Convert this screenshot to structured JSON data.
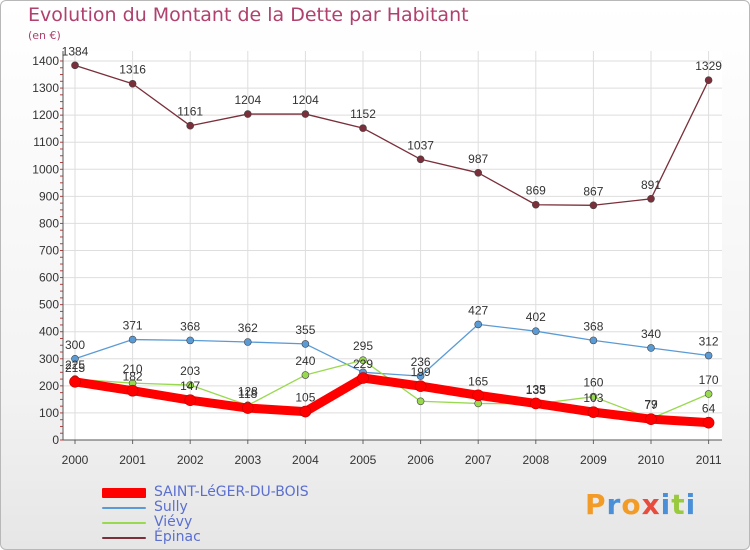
{
  "chart_data": {
    "type": "line",
    "title": "Evolution du Montant de la Dette par Habitant",
    "ylabel": "(en €)",
    "x": [
      "2000",
      "2001",
      "2002",
      "2003",
      "2004",
      "2005",
      "2006",
      "2007",
      "2008",
      "2009",
      "2010",
      "2011"
    ],
    "ylim": [
      0,
      1400
    ],
    "yticks": [
      0,
      100,
      200,
      300,
      400,
      500,
      600,
      700,
      800,
      900,
      1000,
      1100,
      1200,
      1300,
      1400
    ],
    "grid": true,
    "legend_position": "bottom-left",
    "series": [
      {
        "name": "SAINT-LéGER-DU-BOIS",
        "color": "#ff0000",
        "values": [
          215,
          182,
          147,
          118,
          105,
          229,
          199,
          165,
          135,
          103,
          77,
          64
        ]
      },
      {
        "name": "Sully",
        "color": "#5b9bd5",
        "values": [
          300,
          371,
          368,
          362,
          355,
          250,
          236,
          427,
          402,
          368,
          340,
          312
        ]
      },
      {
        "name": "Viévy",
        "color": "#99d94f",
        "values": [
          225,
          210,
          203,
          128,
          240,
          295,
          143,
          135,
          133,
          160,
          79,
          170
        ]
      },
      {
        "name": "Épinac",
        "color": "#7a2f3a",
        "values": [
          1384,
          1316,
          1161,
          1204,
          1204,
          1152,
          1037,
          987,
          869,
          867,
          891,
          1329
        ]
      }
    ],
    "data_labels": [
      {
        "series": "Épinac",
        "labels": [
          "1384",
          "1316",
          "1161",
          "1204",
          "1204",
          "1152",
          "1037",
          "987",
          "869",
          "867",
          "891",
          "1329"
        ]
      },
      {
        "series": "Sully",
        "labels": [
          "300",
          "371",
          "368",
          "362",
          "355",
          "",
          "236",
          "427",
          "402",
          "368",
          "340",
          "312"
        ]
      },
      {
        "series": "Viévy",
        "labels": [
          "225",
          "210",
          "203",
          "128",
          "240",
          "295",
          "",
          "",
          "133",
          "160",
          "79",
          "170"
        ]
      },
      {
        "series": "SAINT-LéGER-DU-BOIS",
        "labels": [
          "215",
          "182",
          "147",
          "118",
          "105",
          "229",
          "199",
          "165",
          "135",
          "103",
          "77",
          "64"
        ]
      }
    ]
  },
  "logo": {
    "text": "Proxiti",
    "colors": [
      "#f29b26",
      "#4a90d9",
      "#f29b26",
      "#e84c3d",
      "#4a90d9",
      "#99c93c",
      "#4a90d9"
    ]
  }
}
